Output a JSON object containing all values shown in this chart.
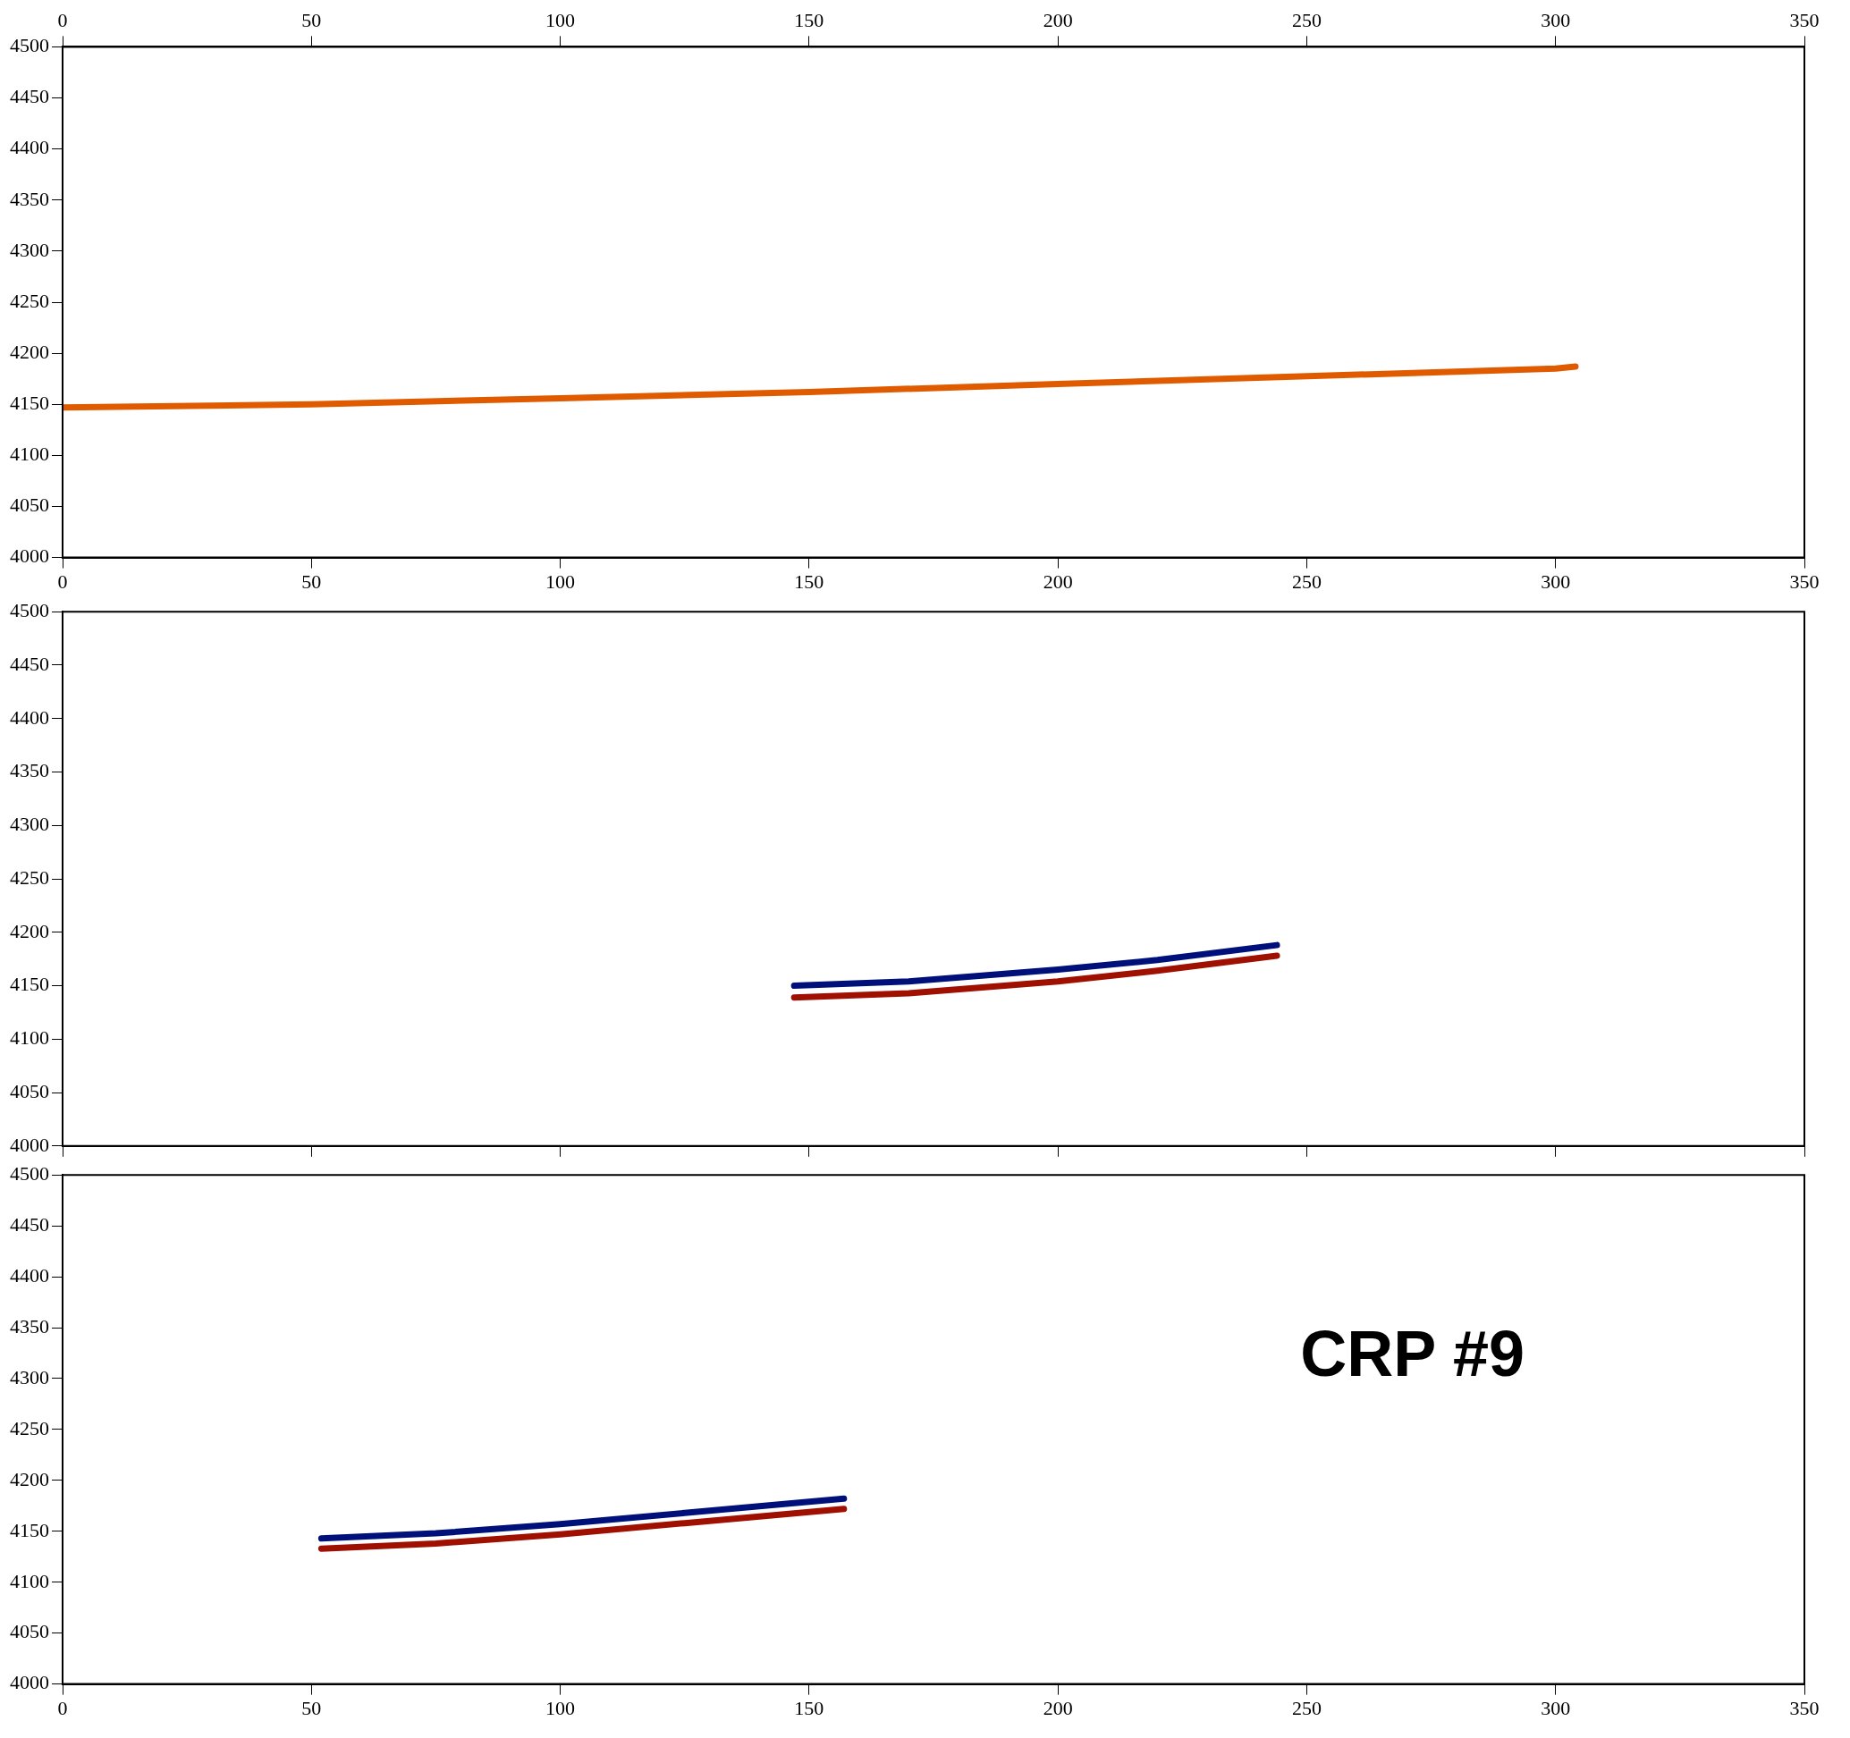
{
  "chart_data": [
    {
      "type": "line",
      "xlim": [
        0,
        350
      ],
      "xticks": [
        0,
        50,
        100,
        150,
        200,
        250,
        300,
        350
      ],
      "x2lim": [
        0,
        350
      ],
      "x2ticks": [
        0,
        50,
        100,
        150,
        200,
        250,
        300,
        350
      ],
      "ylim": [
        4000,
        4500
      ],
      "yticks": [
        4000,
        4050,
        4100,
        4150,
        4200,
        4250,
        4300,
        4350,
        4400,
        4450,
        4500
      ],
      "series": [
        {
          "color": "#e05a00",
          "x": [
            0,
            50,
            100,
            150,
            200,
            220,
            300,
            304
          ],
          "values": [
            4147,
            4150,
            4156,
            4162,
            4170,
            4173,
            4185,
            4187
          ]
        }
      ]
    },
    {
      "type": "line",
      "xlim": [
        0,
        350
      ],
      "xticks": [
        0,
        50,
        100,
        150,
        200,
        250,
        300,
        350
      ],
      "ylim": [
        4000,
        4500
      ],
      "yticks": [
        4000,
        4050,
        4100,
        4150,
        4200,
        4250,
        4300,
        4350,
        4400,
        4450,
        4500
      ],
      "tick_labels": "y",
      "series": [
        {
          "color": "#00107a",
          "x": [
            147,
            170,
            200,
            220,
            244
          ],
          "values": [
            4150,
            4154,
            4165,
            4174,
            4188
          ]
        },
        {
          "color": "#a01000",
          "x": [
            147,
            170,
            200,
            220,
            244
          ],
          "values": [
            4139,
            4143,
            4154,
            4164,
            4178
          ]
        }
      ]
    },
    {
      "type": "line",
      "xlim": [
        0,
        350
      ],
      "xticks": [
        0,
        50,
        100,
        150,
        200,
        250,
        300,
        350
      ],
      "ylim": [
        4000,
        4500
      ],
      "yticks": [
        4000,
        4050,
        4100,
        4150,
        4200,
        4250,
        4300,
        4350,
        4400,
        4450,
        4500
      ],
      "annotations": [
        "CRP #9"
      ],
      "series": [
        {
          "color": "#00107a",
          "x": [
            52,
            75,
            100,
            125,
            157
          ],
          "values": [
            4143,
            4148,
            4157,
            4168,
            4182
          ]
        },
        {
          "color": "#a01000",
          "x": [
            52,
            75,
            100,
            125,
            157
          ],
          "values": [
            4133,
            4138,
            4147,
            4158,
            4172
          ]
        }
      ]
    }
  ]
}
